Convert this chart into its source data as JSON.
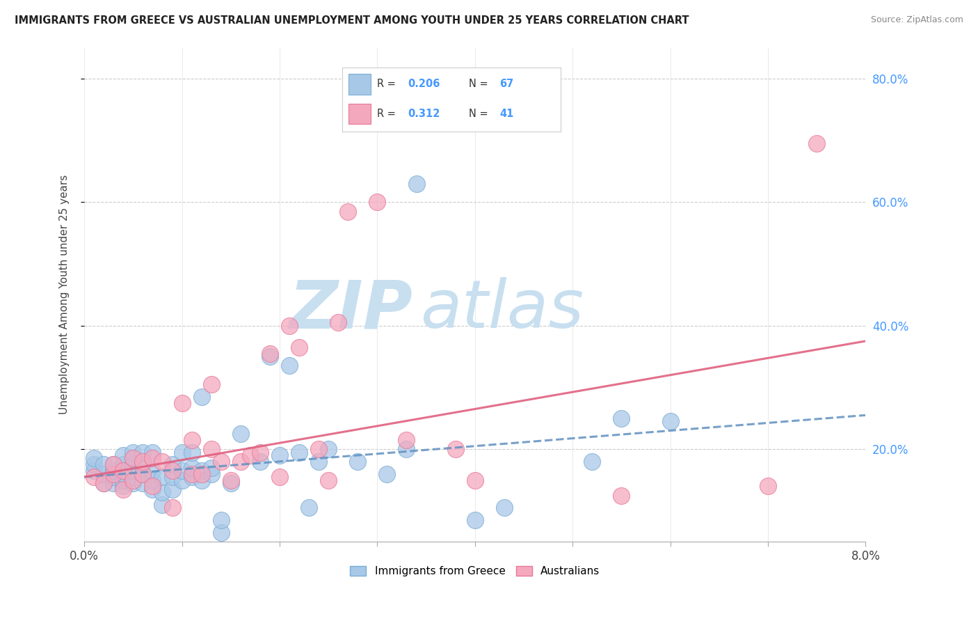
{
  "title": "IMMIGRANTS FROM GREECE VS AUSTRALIAN UNEMPLOYMENT AMONG YOUTH UNDER 25 YEARS CORRELATION CHART",
  "source": "Source: ZipAtlas.com",
  "ylabel": "Unemployment Among Youth under 25 years",
  "xlim": [
    0.0,
    0.08
  ],
  "ylim": [
    0.05,
    0.85
  ],
  "xtick_positions": [
    0.0,
    0.01,
    0.02,
    0.03,
    0.04,
    0.05,
    0.06,
    0.07,
    0.08
  ],
  "xtick_labels": [
    "0.0%",
    "",
    "",
    "",
    "",
    "",
    "",
    "",
    "8.0%"
  ],
  "ytick_vals": [
    0.2,
    0.4,
    0.6,
    0.8
  ],
  "ytick_labels": [
    "20.0%",
    "40.0%",
    "60.0%",
    "80.0%"
  ],
  "legend_R1": "0.206",
  "legend_N1": "67",
  "legend_R2": "0.312",
  "legend_N2": "41",
  "color_blue": "#a8c8e8",
  "color_blue_edge": "#7aadd4",
  "color_pink": "#f4a8be",
  "color_pink_edge": "#e87898",
  "color_blue_line": "#6090c0",
  "color_pink_line": "#e06080",
  "color_R_N": "#4499ff",
  "watermark_zip_color": "#c8dff0",
  "watermark_atlas_color": "#c8dff0",
  "blue_scatter_x": [
    0.001,
    0.001,
    0.001,
    0.002,
    0.002,
    0.002,
    0.003,
    0.003,
    0.003,
    0.003,
    0.004,
    0.004,
    0.004,
    0.004,
    0.004,
    0.005,
    0.005,
    0.005,
    0.005,
    0.005,
    0.005,
    0.006,
    0.006,
    0.006,
    0.006,
    0.007,
    0.007,
    0.007,
    0.007,
    0.008,
    0.008,
    0.008,
    0.009,
    0.009,
    0.009,
    0.01,
    0.01,
    0.01,
    0.011,
    0.011,
    0.011,
    0.012,
    0.012,
    0.012,
    0.013,
    0.013,
    0.014,
    0.014,
    0.015,
    0.016,
    0.018,
    0.019,
    0.02,
    0.021,
    0.022,
    0.023,
    0.024,
    0.025,
    0.028,
    0.031,
    0.033,
    0.034,
    0.04,
    0.043,
    0.052,
    0.055,
    0.06
  ],
  "blue_scatter_y": [
    0.165,
    0.175,
    0.185,
    0.145,
    0.16,
    0.175,
    0.145,
    0.155,
    0.165,
    0.175,
    0.14,
    0.15,
    0.16,
    0.175,
    0.19,
    0.145,
    0.155,
    0.165,
    0.175,
    0.185,
    0.195,
    0.145,
    0.16,
    0.175,
    0.195,
    0.135,
    0.15,
    0.165,
    0.195,
    0.11,
    0.13,
    0.155,
    0.135,
    0.155,
    0.175,
    0.15,
    0.165,
    0.195,
    0.155,
    0.17,
    0.195,
    0.15,
    0.165,
    0.285,
    0.16,
    0.17,
    0.065,
    0.085,
    0.145,
    0.225,
    0.18,
    0.35,
    0.19,
    0.335,
    0.195,
    0.105,
    0.18,
    0.2,
    0.18,
    0.16,
    0.2,
    0.63,
    0.085,
    0.105,
    0.18,
    0.25,
    0.245
  ],
  "pink_scatter_x": [
    0.001,
    0.002,
    0.003,
    0.003,
    0.004,
    0.004,
    0.005,
    0.005,
    0.006,
    0.006,
    0.007,
    0.007,
    0.008,
    0.009,
    0.009,
    0.01,
    0.011,
    0.011,
    0.012,
    0.013,
    0.013,
    0.014,
    0.015,
    0.016,
    0.017,
    0.018,
    0.019,
    0.02,
    0.021,
    0.022,
    0.024,
    0.025,
    0.026,
    0.027,
    0.03,
    0.033,
    0.038,
    0.04,
    0.055,
    0.07,
    0.075
  ],
  "pink_scatter_y": [
    0.155,
    0.145,
    0.16,
    0.175,
    0.135,
    0.165,
    0.15,
    0.185,
    0.16,
    0.18,
    0.14,
    0.185,
    0.18,
    0.105,
    0.165,
    0.275,
    0.16,
    0.215,
    0.16,
    0.305,
    0.2,
    0.18,
    0.15,
    0.18,
    0.19,
    0.195,
    0.355,
    0.155,
    0.4,
    0.365,
    0.2,
    0.15,
    0.405,
    0.585,
    0.6,
    0.215,
    0.2,
    0.15,
    0.125,
    0.14,
    0.695
  ],
  "blue_trend_x": [
    0.0,
    0.08
  ],
  "blue_trend_y": [
    0.155,
    0.255
  ],
  "pink_trend_x": [
    0.0,
    0.08
  ],
  "pink_trend_y": [
    0.155,
    0.375
  ],
  "figsize": [
    14.06,
    8.92
  ],
  "dpi": 100
}
